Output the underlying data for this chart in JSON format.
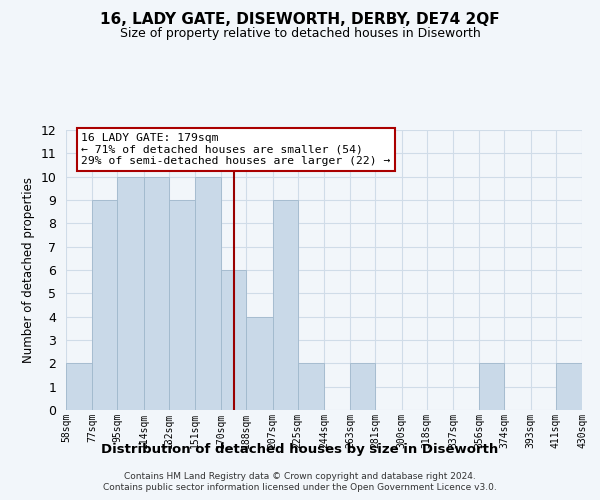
{
  "title": "16, LADY GATE, DISEWORTH, DERBY, DE74 2QF",
  "subtitle": "Size of property relative to detached houses in Diseworth",
  "xlabel": "Distribution of detached houses by size in Diseworth",
  "ylabel": "Number of detached properties",
  "bin_edges": [
    58,
    77,
    95,
    114,
    132,
    151,
    170,
    188,
    207,
    225,
    244,
    263,
    281,
    300,
    318,
    337,
    356,
    374,
    393,
    411,
    430
  ],
  "bin_labels": [
    "58sqm",
    "77sqm",
    "95sqm",
    "114sqm",
    "132sqm",
    "151sqm",
    "170sqm",
    "188sqm",
    "207sqm",
    "225sqm",
    "244sqm",
    "263sqm",
    "281sqm",
    "300sqm",
    "318sqm",
    "337sqm",
    "356sqm",
    "374sqm",
    "393sqm",
    "411sqm",
    "430sqm"
  ],
  "bar_heights": [
    2,
    9,
    10,
    10,
    9,
    10,
    6,
    4,
    9,
    2,
    0,
    2,
    0,
    0,
    0,
    0,
    2,
    0,
    0,
    2
  ],
  "bar_color": "#c9d9e8",
  "bar_edge_color": "#a0b8cc",
  "reference_line_x": 179,
  "reference_line_color": "#990000",
  "ylim": [
    0,
    12
  ],
  "yticks": [
    0,
    1,
    2,
    3,
    4,
    5,
    6,
    7,
    8,
    9,
    10,
    11,
    12
  ],
  "annotation_title": "16 LADY GATE: 179sqm",
  "annotation_line1": "← 71% of detached houses are smaller (54)",
  "annotation_line2": "29% of semi-detached houses are larger (22) →",
  "annotation_box_color": "#ffffff",
  "annotation_box_edge": "#aa0000",
  "background_color": "#f2f6fa",
  "grid_color": "#d0dce8",
  "footer1": "Contains HM Land Registry data © Crown copyright and database right 2024.",
  "footer2": "Contains public sector information licensed under the Open Government Licence v3.0."
}
